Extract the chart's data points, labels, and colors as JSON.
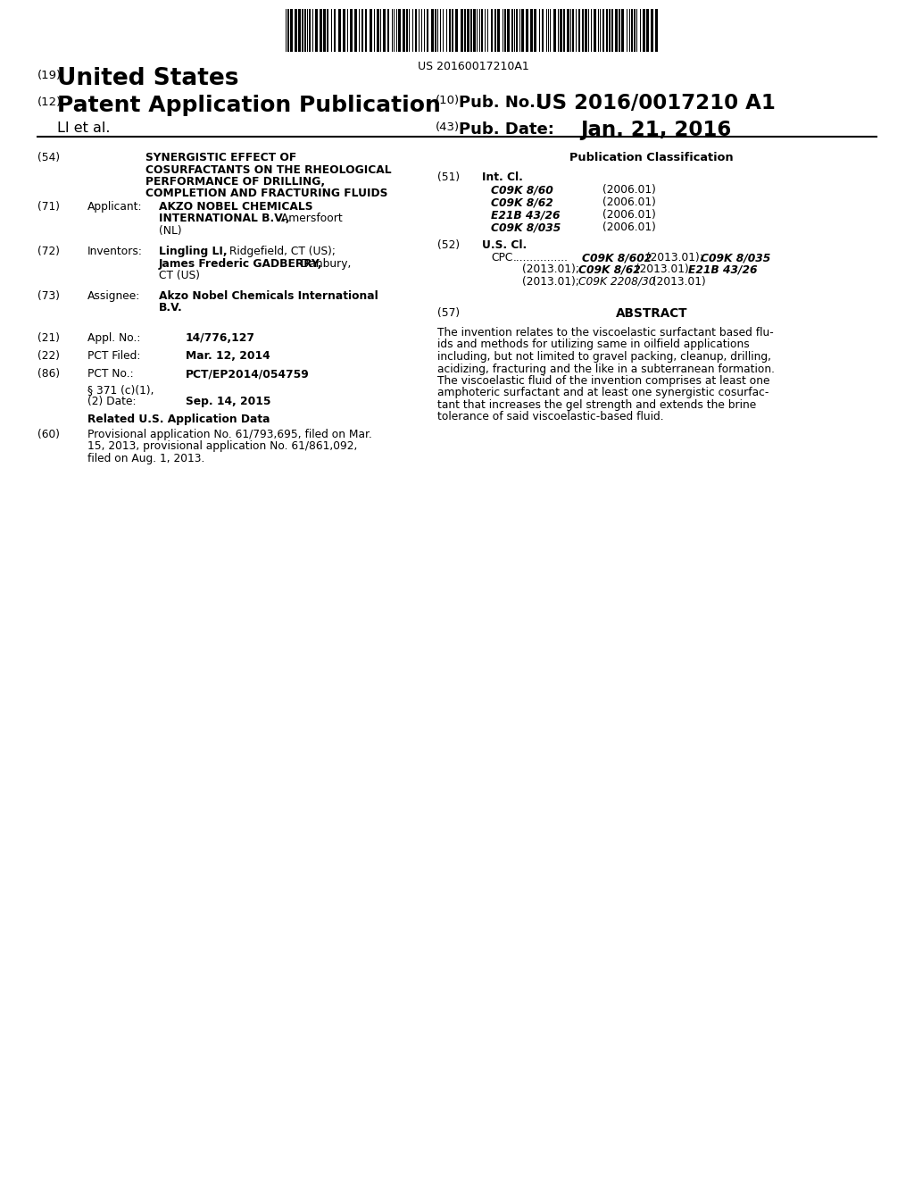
{
  "bg_color": "#ffffff",
  "barcode_text": "US 20160017210A1",
  "country": "United States",
  "pub_type": "Patent Application Publication",
  "pub_no_value": "US 2016/0017210 A1",
  "pub_date_value": "Jan. 21, 2016",
  "authors": "LI et al.",
  "field_54_text_lines": [
    "SYNERGISTIC EFFECT OF",
    "COSURFACTANTS ON THE RHEOLOGICAL",
    "PERFORMANCE OF DRILLING,",
    "COMPLETION AND FRACTURING FLUIDS"
  ],
  "int_cl_entries": [
    [
      "C09K 8/60",
      "(2006.01)"
    ],
    [
      "C09K 8/62",
      "(2006.01)"
    ],
    [
      "E21B 43/26",
      "(2006.01)"
    ],
    [
      "C09K 8/035",
      "(2006.01)"
    ]
  ],
  "abstract_text": "The invention relates to the viscoelastic surfactant based flu-\nids and methods for utilizing same in oilfield applications\nincluding, but not limited to gravel packing, cleanup, drilling,\nacidizing, fracturing and the like in a subterranean formation.\nThe viscoelastic fluid of the invention comprises at least one\namphoteric surfactant and at least one synergistic cosurfac-\ntant that increases the gel strength and extends the brine\ntolerance of said viscoelastic-based fluid."
}
